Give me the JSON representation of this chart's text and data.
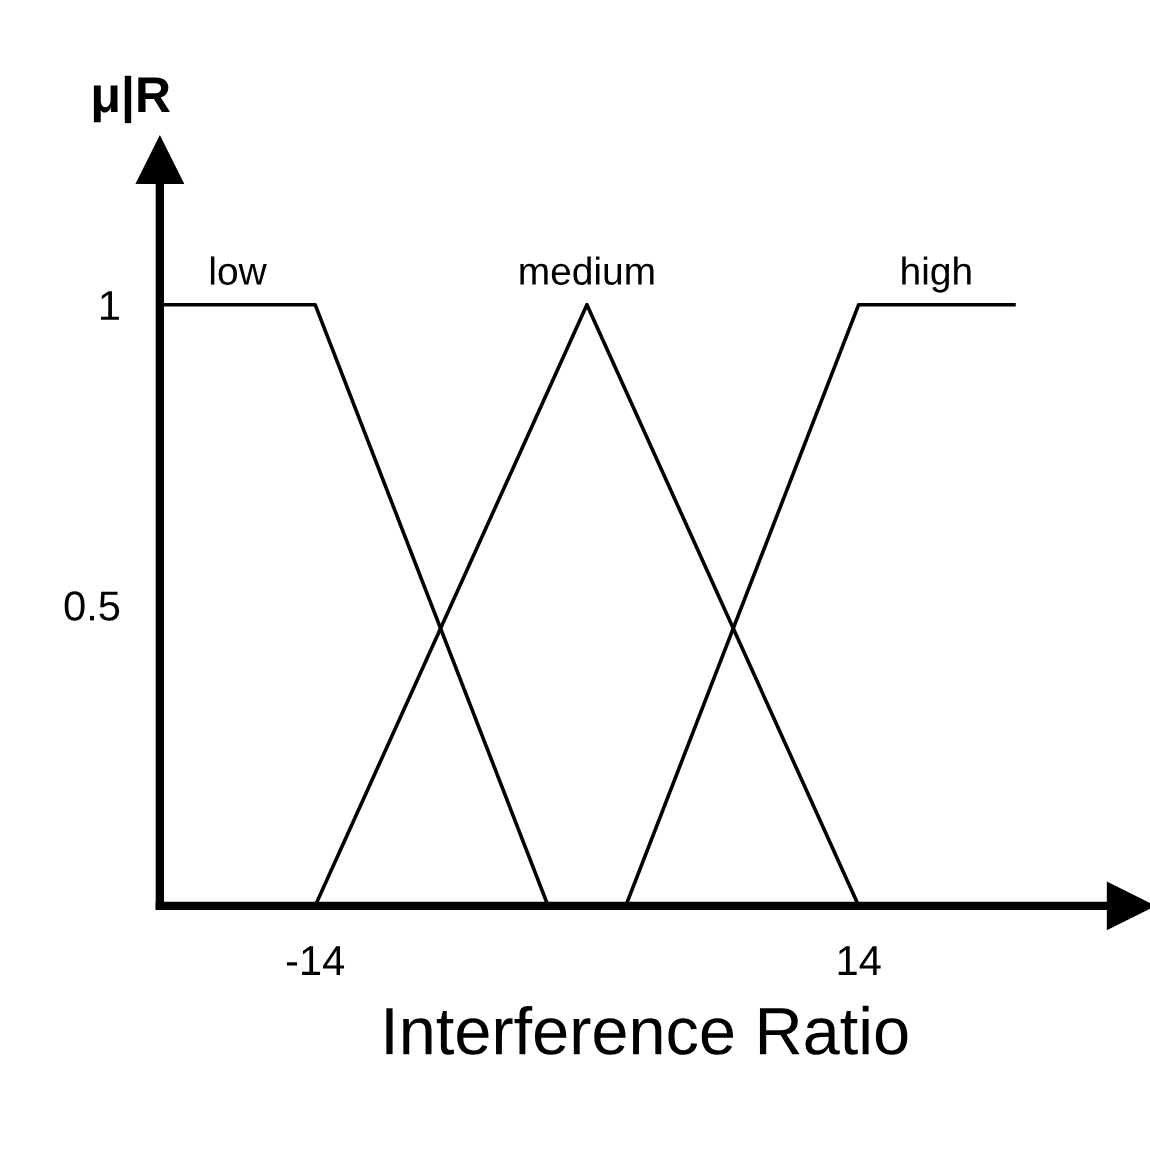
{
  "chart_data": {
    "type": "line",
    "xlabel": "Interference Ratio",
    "ylabel": "μ|R",
    "series": [
      {
        "name": "low",
        "color": "#000000",
        "x": [
          -22,
          -14,
          -2
        ],
        "values": [
          1,
          1,
          0
        ]
      },
      {
        "name": "medium",
        "color": "#000000",
        "x": [
          -14,
          0,
          14
        ],
        "values": [
          0,
          1,
          0
        ]
      },
      {
        "name": "high",
        "color": "#000000",
        "x": [
          2,
          14,
          22
        ],
        "values": [
          0,
          1,
          1
        ]
      }
    ],
    "xlim": [
      -22,
      28
    ],
    "ylim": [
      0,
      1.24
    ],
    "xticks": [
      -14,
      14
    ],
    "yticks": [
      0.5,
      1
    ],
    "grid": false,
    "legend": false,
    "marker": "none",
    "line_style": "solid"
  }
}
